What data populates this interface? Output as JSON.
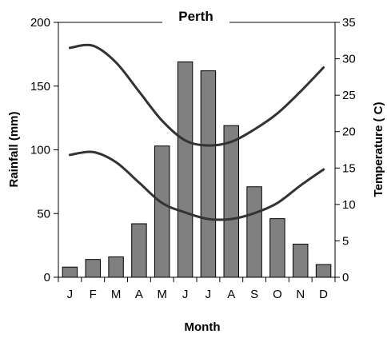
{
  "chart_data": {
    "type": "bar",
    "title": "Perth",
    "xlabel": "Month",
    "ylabel": "Rainfall (mm)",
    "y2label": "Temperature ( C)",
    "categories": [
      "J",
      "F",
      "M",
      "A",
      "M",
      "J",
      "J",
      "A",
      "S",
      "O",
      "N",
      "D"
    ],
    "ylim": [
      0,
      200
    ],
    "y2lim": [
      0,
      35
    ],
    "yticks": [
      "0",
      "50",
      "100",
      "150",
      "200"
    ],
    "y2ticks": [
      "0",
      "5",
      "10",
      "15",
      "20",
      "25",
      "30",
      "35"
    ],
    "bar_color": "#808080",
    "line_color": "#333333",
    "series": [
      {
        "values": [
          8,
          14,
          16,
          42,
          103,
          169,
          162,
          119,
          71,
          46,
          26,
          10
        ],
        "type": "bar",
        "axis": "left"
      },
      {
        "values": [
          31.5,
          31.8,
          29.5,
          25.5,
          21.5,
          18.8,
          18.1,
          18.6,
          20.3,
          22.5,
          25.5,
          28.8
        ],
        "type": "line",
        "axis": "right"
      },
      {
        "values": [
          16.8,
          17.2,
          15.8,
          13,
          10.2,
          8.9,
          8,
          8,
          8.8,
          10.2,
          12.6,
          14.8
        ],
        "type": "line",
        "axis": "right"
      }
    ]
  }
}
